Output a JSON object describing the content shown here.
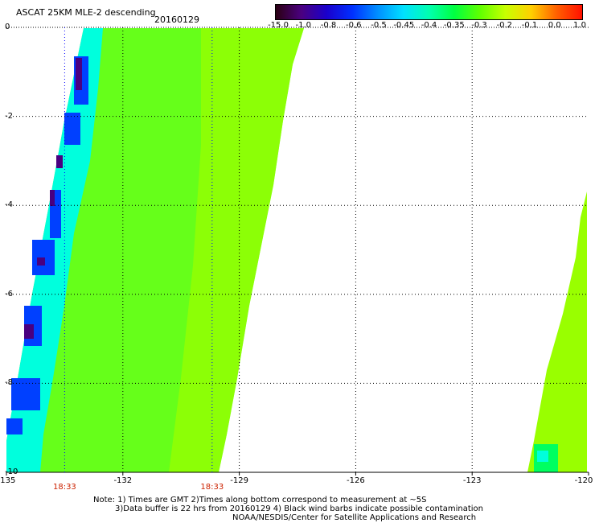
{
  "header": {
    "title": "ASCAT 25KM MLE-2 descending",
    "date": "20160129"
  },
  "colorbar": {
    "labels": [
      "-15.0",
      "-1.0",
      "-0.8",
      "-0.6",
      "-0.5",
      "-0.45",
      "-0.4",
      "-0.35",
      "-0.3",
      "-0.2",
      "-0.1",
      "0.0",
      "1.0"
    ],
    "gradient_stops": [
      "#2a0012",
      "#4a0080",
      "#1a00cc",
      "#0030ff",
      "#0090ff",
      "#00e0ff",
      "#00ffb0",
      "#00ff40",
      "#60ff00",
      "#c8ff00",
      "#ffd000",
      "#ff6000",
      "#ff1000"
    ]
  },
  "map": {
    "y_labels": [
      "0",
      "-2",
      "-4",
      "-6",
      "-8",
      "-10"
    ],
    "x_labels": [
      "-135",
      "-132",
      "-129",
      "-126",
      "-123",
      "-120"
    ],
    "y_range": [
      0,
      -10
    ],
    "x_range": [
      -135,
      -120
    ],
    "pass_times": [
      {
        "label": "18:33",
        "lon": -133.5
      },
      {
        "label": "18:33",
        "lon": -129.7
      }
    ],
    "swaths": [
      {
        "name": "swath-left",
        "edge_lons_west": -135.0,
        "edge_lons_east_top": -127.5,
        "edge_lons_east_bottom": -129.6
      },
      {
        "name": "swath-right",
        "west_top": -120.1,
        "west_bottom": -122.0
      }
    ],
    "colors": {
      "background_grid": "#000000",
      "field_main": "#66ff1a",
      "field_east": "#99ff00",
      "field_cyan": "#00ffdd",
      "field_blue": "#0040ff",
      "field_purple": "#4a0080"
    }
  },
  "notes": {
    "line1": "Note: 1) Times are GMT 2)Times along bottom correspond to measurement at ~5S",
    "line2": "3)Data buffer is 22 hrs from 20160129 4) Black wind barbs indicate possible contamination",
    "line3": "NOAA/NESDIS/Center for Satellite Applications and Research"
  }
}
